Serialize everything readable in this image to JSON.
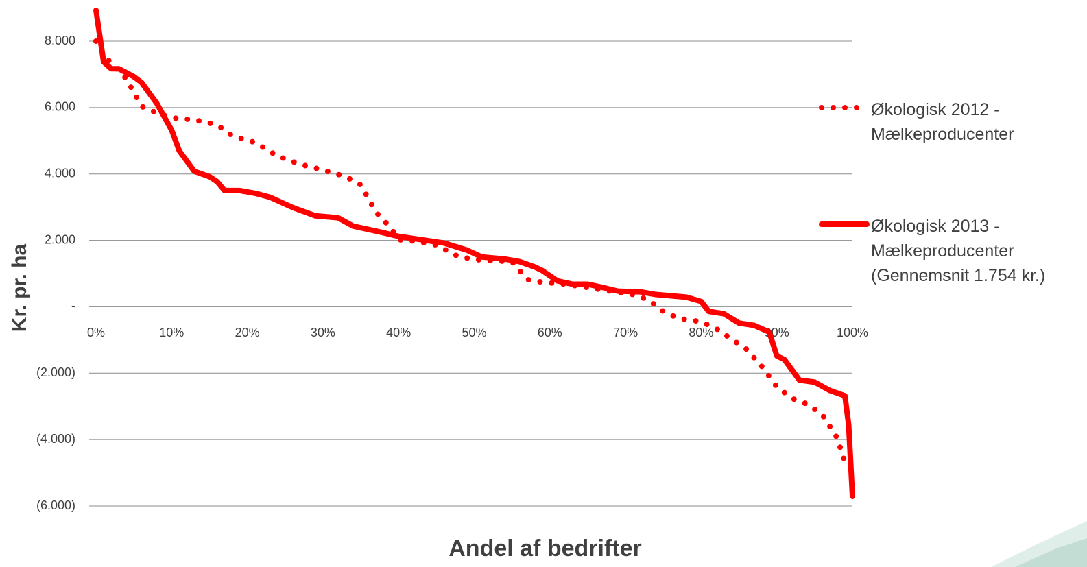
{
  "chart_data": {
    "type": "line",
    "x_label": "Andel af bedrifter",
    "y_label": "Kr. pr. ha",
    "xlim": [
      0,
      1
    ],
    "xticks": [
      {
        "value": 0,
        "label": "0%"
      },
      {
        "value": 0.1,
        "label": "10%"
      },
      {
        "value": 0.2,
        "label": "20%"
      },
      {
        "value": 0.3,
        "label": "30%"
      },
      {
        "value": 0.4,
        "label": "40%"
      },
      {
        "value": 0.5,
        "label": "50%"
      },
      {
        "value": 0.6,
        "label": "60%"
      },
      {
        "value": 0.7,
        "label": "70%"
      },
      {
        "value": 0.8,
        "label": "80%"
      },
      {
        "value": 0.9,
        "label": "90%"
      },
      {
        "value": 1,
        "label": "100%"
      }
    ],
    "ylim": [
      -6000,
      8000
    ],
    "yticks": [
      {
        "value": 8000,
        "label": "8.000"
      },
      {
        "value": 6000,
        "label": "6.000"
      },
      {
        "value": 4000,
        "label": "4.000"
      },
      {
        "value": 2000,
        "label": "2.000"
      },
      {
        "value": 0,
        "label": "-"
      },
      {
        "value": -2000,
        "label": "(2.000)"
      },
      {
        "value": -4000,
        "label": "(4.000)"
      },
      {
        "value": -6000,
        "label": "(6.000)"
      }
    ],
    "grid": true,
    "legend": "right",
    "series": [
      {
        "name": "Økologisk 2012 - Mælkeproducenter",
        "color": "#ff0000",
        "style": "dotted",
        "x": [
          0,
          0.01,
          0.02,
          0.04,
          0.06,
          0.08,
          0.1,
          0.13,
          0.16,
          0.18,
          0.21,
          0.24,
          0.27,
          0.3,
          0.33,
          0.35,
          0.36,
          0.37,
          0.39,
          0.4,
          0.42,
          0.45,
          0.48,
          0.51,
          0.55,
          0.57,
          0.59,
          0.62,
          0.65,
          0.68,
          0.71,
          0.73,
          0.75,
          0.77,
          0.8,
          0.82,
          0.84,
          0.86,
          0.88,
          0.9,
          0.92,
          0.94,
          0.96,
          0.98,
          0.99,
          1
        ],
        "values": [
          8000,
          7590,
          7340,
          6870,
          6040,
          5840,
          5690,
          5630,
          5480,
          5150,
          4950,
          4540,
          4290,
          4120,
          3920,
          3670,
          3260,
          2850,
          2370,
          2020,
          1980,
          1860,
          1500,
          1400,
          1360,
          820,
          740,
          680,
          580,
          470,
          370,
          210,
          -140,
          -350,
          -450,
          -660,
          -970,
          -1280,
          -1790,
          -2410,
          -2760,
          -2930,
          -3240,
          -3960,
          -4680,
          -4890
        ]
      },
      {
        "name": "Økologisk 2013 - Mælkeproducenter (Gennemsnit 1.754 kr.)",
        "color": "#ff0000",
        "style": "solid",
        "x": [
          0,
          0.01,
          0.02,
          0.03,
          0.05,
          0.06,
          0.08,
          0.1,
          0.11,
          0.13,
          0.15,
          0.16,
          0.17,
          0.19,
          0.21,
          0.23,
          0.26,
          0.29,
          0.32,
          0.34,
          0.36,
          0.38,
          0.4,
          0.43,
          0.46,
          0.49,
          0.51,
          0.54,
          0.56,
          0.58,
          0.59,
          0.61,
          0.63,
          0.65,
          0.67,
          0.69,
          0.72,
          0.74,
          0.78,
          0.8,
          0.81,
          0.83,
          0.85,
          0.87,
          0.89,
          0.9,
          0.91,
          0.93,
          0.95,
          0.97,
          0.99,
          0.995,
          1
        ],
        "values": [
          8930,
          7380,
          7170,
          7170,
          6930,
          6760,
          6140,
          5320,
          4700,
          4080,
          3920,
          3770,
          3500,
          3500,
          3420,
          3300,
          2990,
          2740,
          2680,
          2430,
          2330,
          2230,
          2120,
          2020,
          1920,
          1710,
          1500,
          1440,
          1360,
          1200,
          1090,
          780,
          680,
          680,
          580,
          470,
          450,
          370,
          290,
          160,
          -140,
          -210,
          -490,
          -560,
          -760,
          -1480,
          -1590,
          -2210,
          -2270,
          -2520,
          -2680,
          -3550,
          -5710
        ]
      }
    ]
  }
}
